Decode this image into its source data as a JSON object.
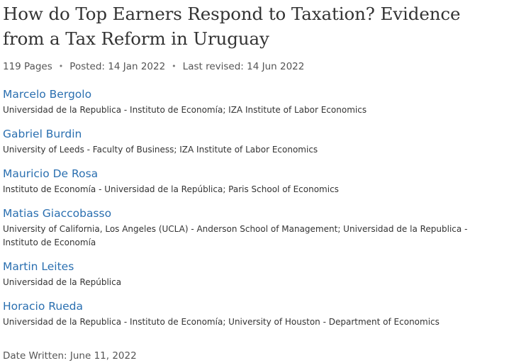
{
  "paper": {
    "title": "How do Top Earners Respond to Taxation? Evidence from a Tax Reform in Uruguay",
    "pages": "119 Pages",
    "posted": "Posted: 14 Jan 2022",
    "last_revised": "Last revised: 14 Jun 2022",
    "separator": "•",
    "date_written": "Date Written: June 11, 2022"
  },
  "authors": [
    {
      "name": "Marcelo Bergolo",
      "affiliation": "Universidad de la Republica - Instituto de Economía; IZA Institute of Labor Economics"
    },
    {
      "name": "Gabriel Burdin",
      "affiliation": "University of Leeds - Faculty of Business; IZA Institute of Labor Economics"
    },
    {
      "name": "Mauricio De Rosa",
      "affiliation": "Instituto de Economía - Universidad de la República; Paris School of Economics"
    },
    {
      "name": "Matias Giaccobasso",
      "affiliation": "University of California, Los Angeles (UCLA) - Anderson School of Management; Universidad de la Republica - Instituto de Economía"
    },
    {
      "name": "Martin Leites",
      "affiliation": "Universidad de la República"
    },
    {
      "name": "Horacio Rueda",
      "affiliation": "Universidad de la Republica - Instituto de Economía; University of Houston - Department of Economics"
    }
  ],
  "colors": {
    "link": "#2a6fb0",
    "text": "#333333",
    "meta": "#555555"
  }
}
